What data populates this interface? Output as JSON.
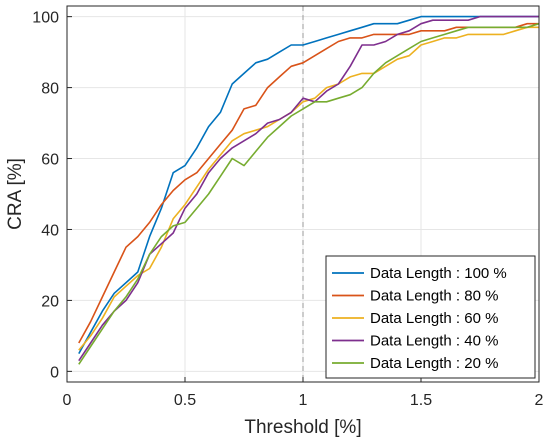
{
  "chart_data": {
    "type": "line",
    "title": "",
    "xlabel": "Threshold [%]",
    "ylabel": "CRA [%]",
    "xlim": [
      0,
      2
    ],
    "ylim": [
      -3,
      103
    ],
    "xticks": [
      0,
      0.5,
      1,
      1.5,
      2
    ],
    "xtick_labels": [
      "0",
      "0.5",
      "1",
      "1.5",
      "2"
    ],
    "yticks": [
      0,
      20,
      40,
      60,
      80,
      100
    ],
    "ytick_labels": [
      "0",
      "20",
      "40",
      "60",
      "80",
      "100"
    ],
    "grid": true,
    "legend_position": "bottom-right",
    "reference_line": {
      "x": 1,
      "style": "dashed",
      "color": "#999999"
    },
    "x": [
      0.05,
      0.1,
      0.15,
      0.2,
      0.25,
      0.3,
      0.35,
      0.4,
      0.45,
      0.5,
      0.55,
      0.6,
      0.65,
      0.7,
      0.75,
      0.8,
      0.85,
      0.9,
      0.95,
      1.0,
      1.05,
      1.1,
      1.15,
      1.2,
      1.25,
      1.3,
      1.35,
      1.4,
      1.45,
      1.5,
      1.55,
      1.6,
      1.65,
      1.7,
      1.75,
      1.8,
      1.85,
      1.9,
      1.95,
      2.0
    ],
    "series": [
      {
        "name": "Data Length : 100 %",
        "color": "#0072BD",
        "values": [
          5,
          11,
          17,
          22,
          25,
          28,
          38,
          46,
          56,
          58,
          63,
          69,
          73,
          81,
          84,
          87,
          88,
          90,
          92,
          92,
          93,
          94,
          95,
          96,
          97,
          98,
          98,
          98,
          99,
          100,
          100,
          100,
          100,
          100,
          100,
          100,
          100,
          100,
          100,
          100
        ]
      },
      {
        "name": "Data Length : 80 %",
        "color": "#D95319",
        "values": [
          8,
          14,
          21,
          28,
          35,
          38,
          42,
          47,
          51,
          54,
          56,
          60,
          64,
          68,
          74,
          75,
          80,
          83,
          86,
          87,
          89,
          91,
          93,
          94,
          94,
          95,
          95,
          95,
          95,
          96,
          96,
          96,
          97,
          97,
          97,
          97,
          97,
          97,
          98,
          98
        ]
      },
      {
        "name": "Data Length : 60 %",
        "color": "#EDB120",
        "values": [
          6,
          10,
          15,
          21,
          24,
          27,
          29,
          35,
          43,
          47,
          52,
          57,
          61,
          65,
          67,
          68,
          69,
          71,
          73,
          76,
          77,
          80,
          81,
          83,
          84,
          84,
          86,
          88,
          89,
          92,
          93,
          94,
          94,
          95,
          95,
          95,
          95,
          96,
          97,
          97
        ]
      },
      {
        "name": "Data Length : 40 %",
        "color": "#7E2F8E",
        "values": [
          3,
          8,
          13,
          17,
          20,
          25,
          33,
          36,
          39,
          46,
          50,
          56,
          60,
          63,
          65,
          67,
          70,
          71,
          73,
          77,
          76,
          79,
          81,
          86,
          92,
          92,
          93,
          95,
          96,
          98,
          99,
          99,
          99,
          99,
          100,
          100,
          100,
          100,
          100,
          100
        ]
      },
      {
        "name": "Data Length : 20 %",
        "color": "#77AC30",
        "values": [
          2,
          7,
          12,
          17,
          21,
          26,
          33,
          38,
          41,
          42,
          46,
          50,
          55,
          60,
          58,
          62,
          66,
          69,
          72,
          74,
          76,
          76,
          77,
          78,
          80,
          84,
          87,
          89,
          91,
          93,
          94,
          95,
          96,
          97,
          97,
          97,
          97,
          97,
          97,
          98
        ]
      }
    ]
  }
}
